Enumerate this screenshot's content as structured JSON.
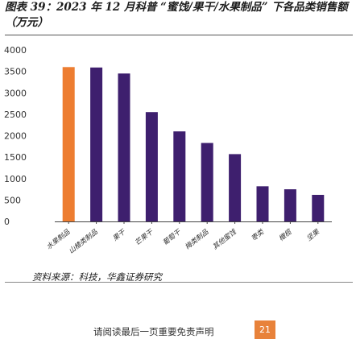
{
  "figure": {
    "title": "图表 39：2023 年 12 月科普 “蜜饯/果干/水果制品” 下各品类销售额（万元）",
    "source": "资料来源：科技，华鑫证券研究",
    "disclaimer": "请阅读最后一页重要免责声明",
    "page_number": "21"
  },
  "colors": {
    "highlight": "#ED7D31",
    "bar": "#3E1F6E",
    "axis": "#444444",
    "text": "#333333"
  },
  "chart_data": {
    "type": "bar",
    "title": "",
    "xlabel": "",
    "ylabel": "",
    "ylim": [
      0,
      4000
    ],
    "yticks": [
      0,
      500,
      1000,
      1500,
      2000,
      2500,
      3000,
      3500,
      4000
    ],
    "grid": false,
    "categories": [
      "水果制品",
      "山楂类制品",
      "果干",
      "芒果干",
      "葡萄干",
      "梅类制品",
      "其他蜜饯",
      "枣类",
      "橄榄",
      "坚果"
    ],
    "values": [
      3600,
      3590,
      3450,
      2550,
      2100,
      1830,
      1570,
      820,
      750,
      620
    ],
    "highlight_index": 0
  }
}
